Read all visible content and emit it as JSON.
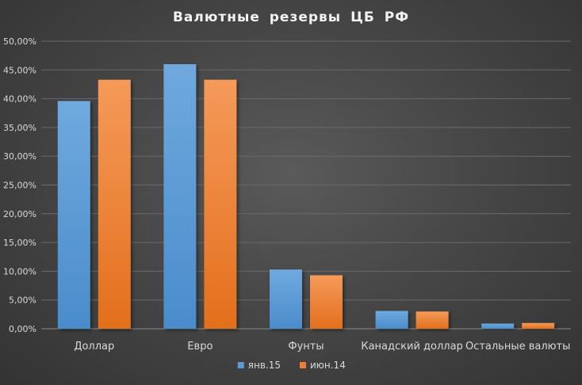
{
  "chart_data": {
    "type": "bar",
    "title": "Валютные  резервы  ЦБ  РФ",
    "xlabel": "",
    "ylabel": "",
    "categories": [
      "Доллар",
      "Евро",
      "Фунты",
      "Канадский доллар",
      "Остальные валюты"
    ],
    "series": [
      {
        "name": "янв.15",
        "values": [
          39.6,
          46.0,
          10.3,
          3.1,
          0.9
        ],
        "color": "#5b9bd5"
      },
      {
        "name": "июн.14",
        "values": [
          43.3,
          43.3,
          9.3,
          3.0,
          1.0
        ],
        "color": "#ed7d31"
      }
    ],
    "ylim": [
      0,
      50
    ],
    "yticks": [
      "0,00%",
      "5,00%",
      "10,00%",
      "15,00%",
      "20,00%",
      "25,00%",
      "30,00%",
      "35,00%",
      "40,00%",
      "45,00%",
      "50,00%"
    ],
    "ytick_values": [
      0,
      5,
      10,
      15,
      20,
      25,
      30,
      35,
      40,
      45,
      50
    ],
    "grid": true,
    "legend_position": "bottom",
    "colors": {
      "text": "#d9d9d9",
      "title": "#f2f2f2",
      "grid": "#6a6a6a",
      "axis": "#8c8c8c"
    }
  }
}
